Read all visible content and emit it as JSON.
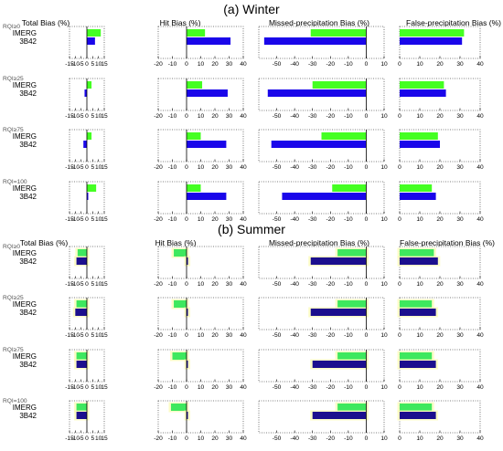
{
  "figure": {
    "section_titles": [
      "(a) Winter",
      "(b) Summer"
    ],
    "column_titles": [
      "Total Bias (%)",
      "Hit Bias (%)",
      "Missed-precipitation Bias (%)",
      "False-precipitation Bias (%)"
    ],
    "row_labels": [
      "RQI≥0",
      "RQI≥25",
      "RQI≥75",
      "RQI=100"
    ],
    "series_names": [
      "IMERG",
      "3B42"
    ],
    "series_colors": [
      "#44ff22",
      "#1a06ea"
    ],
    "summer_colors": [
      "#3ee85e",
      "#1c0f8e"
    ],
    "summer_halo_color": "#fbfbb4",
    "x_tick_labels": [
      [
        "-15",
        "-10",
        "-5",
        "0",
        "5",
        "10",
        "15"
      ],
      [
        "-20",
        "-10",
        "0",
        "10",
        "20",
        "30",
        "40"
      ],
      [
        "-50",
        "-40",
        "-30",
        "-20",
        "-10",
        "0",
        "10"
      ],
      [
        "0",
        "10",
        "20",
        "30",
        "40"
      ]
    ]
  },
  "chart_data": [
    {
      "type": "bar",
      "orientation": "horizontal",
      "title": "(a) Winter",
      "xlabel": "Total Bias (%)",
      "xlim": [
        -15,
        15
      ],
      "categories": [
        "RQI≥0",
        "RQI≥25",
        "RQI≥75",
        "RQI=100"
      ],
      "series": [
        {
          "name": "IMERG",
          "values": [
            12,
            4,
            4,
            8
          ]
        },
        {
          "name": "3B42",
          "values": [
            7,
            -2,
            -3,
            0
          ]
        }
      ]
    },
    {
      "type": "bar",
      "orientation": "horizontal",
      "title": "(a) Winter",
      "xlabel": "Hit Bias (%)",
      "xlim": [
        -20,
        40
      ],
      "categories": [
        "RQI≥0",
        "RQI≥25",
        "RQI≥75",
        "RQI=100"
      ],
      "series": [
        {
          "name": "IMERG",
          "values": [
            13,
            11,
            10,
            10
          ]
        },
        {
          "name": "3B42",
          "values": [
            31,
            29,
            28,
            28
          ]
        }
      ]
    },
    {
      "type": "bar",
      "orientation": "horizontal",
      "title": "(a) Winter",
      "xlabel": "Missed-precipitation Bias (%)",
      "xlim": [
        -60,
        10
      ],
      "categories": [
        "RQI≥0",
        "RQI≥25",
        "RQI≥75",
        "RQI=100"
      ],
      "series": [
        {
          "name": "IMERG",
          "values": [
            -31,
            -30,
            -25,
            -19
          ]
        },
        {
          "name": "3B42",
          "values": [
            -57,
            -55,
            -53,
            -47
          ]
        }
      ]
    },
    {
      "type": "bar",
      "orientation": "horizontal",
      "title": "(a) Winter",
      "xlabel": "False-precipitation Bias (%)",
      "xlim": [
        0,
        40
      ],
      "categories": [
        "RQI≥0",
        "RQI≥25",
        "RQI≥75",
        "RQI=100"
      ],
      "series": [
        {
          "name": "IMERG",
          "values": [
            32,
            22,
            19,
            16
          ]
        },
        {
          "name": "3B42",
          "values": [
            31,
            23,
            20,
            18
          ]
        }
      ]
    },
    {
      "type": "bar",
      "orientation": "horizontal",
      "title": "(b) Summer",
      "xlabel": "Total Bias (%)",
      "xlim": [
        -15,
        15
      ],
      "categories": [
        "RQI≥0",
        "RQI≥25",
        "RQI≥75",
        "RQI=100"
      ],
      "series": [
        {
          "name": "IMERG",
          "values": [
            -8,
            -9,
            -9,
            -9
          ]
        },
        {
          "name": "3B42",
          "values": [
            -9,
            -10,
            -9,
            -9
          ]
        }
      ]
    },
    {
      "type": "bar",
      "orientation": "horizontal",
      "title": "(b) Summer",
      "xlabel": "Hit Bias (%)",
      "xlim": [
        -20,
        40
      ],
      "categories": [
        "RQI≥0",
        "RQI≥25",
        "RQI≥75",
        "RQI=100"
      ],
      "series": [
        {
          "name": "IMERG",
          "values": [
            -9,
            -9,
            -10,
            -11
          ]
        },
        {
          "name": "3B42",
          "values": [
            1,
            0,
            0,
            0
          ]
        }
      ]
    },
    {
      "type": "bar",
      "orientation": "horizontal",
      "title": "(b) Summer",
      "xlabel": "Missed-precipitation Bias (%)",
      "xlim": [
        -60,
        10
      ],
      "categories": [
        "RQI≥0",
        "RQI≥25",
        "RQI≥75",
        "RQI=100"
      ],
      "series": [
        {
          "name": "IMERG",
          "values": [
            -16,
            -16,
            -16,
            -16
          ]
        },
        {
          "name": "3B42",
          "values": [
            -31,
            -31,
            -30,
            -30
          ]
        }
      ]
    },
    {
      "type": "bar",
      "orientation": "horizontal",
      "title": "(b) Summer",
      "xlabel": "False-precipitation Bias (%)",
      "xlim": [
        0,
        40
      ],
      "categories": [
        "RQI≥0",
        "RQI≥25",
        "RQI≥75",
        "RQI=100"
      ],
      "series": [
        {
          "name": "IMERG",
          "values": [
            17,
            16,
            16,
            16
          ]
        },
        {
          "name": "3B42",
          "values": [
            19,
            18,
            18,
            18
          ]
        }
      ]
    }
  ]
}
